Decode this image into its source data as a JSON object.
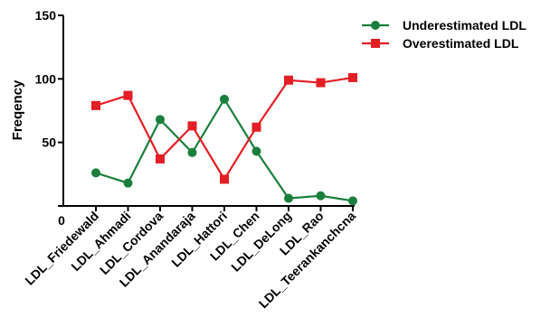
{
  "chart_data": {
    "type": "line",
    "title": "",
    "xlabel": "",
    "ylabel": "Freqency",
    "ylim": [
      0,
      150
    ],
    "yticks": [
      "0",
      "50",
      "100",
      "150"
    ],
    "x_zero_label": "0",
    "categories": [
      "LDL_Friedewald",
      "LDL_Ahmadi",
      "LDL_Cordova",
      "LDL_Anandaraja",
      "LDL_Hattori",
      "LDL_Chen",
      "LDL_DeLong",
      "LDL_Rao",
      "LDL_Teerankanchcna"
    ],
    "series": [
      {
        "name": "Underestimated  LDL",
        "color": "#1a7f3c",
        "marker": "circle",
        "values": [
          26,
          18,
          68,
          42,
          84,
          43,
          6,
          8,
          4
        ]
      },
      {
        "name": "Overestimated LDL",
        "color": "#e31e24",
        "marker": "square",
        "values": [
          79,
          87,
          37,
          63,
          21,
          62,
          99,
          97,
          101
        ]
      }
    ],
    "grid": false,
    "legend_position": "top-right"
  }
}
